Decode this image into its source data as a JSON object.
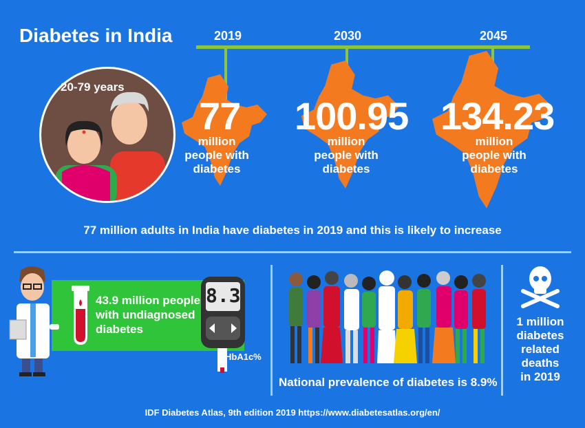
{
  "title": "Diabetes in India",
  "age_range": "20-79 years",
  "timeline": [
    {
      "year": "2019",
      "value": "77",
      "unit": "million",
      "desc1": "people with",
      "desc2": "diabetes"
    },
    {
      "year": "2030",
      "value": "100.95",
      "unit": "million",
      "desc1": "people with",
      "desc2": "diabetes"
    },
    {
      "year": "2045",
      "value": "134.23",
      "unit": "million",
      "desc1": "people with",
      "desc2": "diabetes"
    }
  ],
  "summary": "77 million adults in India have diabetes in 2019 and this is likely to increase",
  "undiagnosed": {
    "line1": "43.9 million people",
    "line2": "with undiagnosed",
    "line3": "diabetes"
  },
  "meter_reading": "8.3",
  "hba1c_label": "HbA1c%",
  "prevalence": "National prevalence of diabetes is 8.9%",
  "deaths": {
    "line1": "1 million",
    "line2": "diabetes",
    "line3": "related",
    "line4": "deaths",
    "line5": "in 2019"
  },
  "source": "IDF Diabetes Atlas, 9th edition 2019  https://www.diabetesatlas.org/en/",
  "colors": {
    "background": "#1a75e3",
    "accent_green": "#8cc63f",
    "map_orange": "#f47a20",
    "box_green": "#2fc43a"
  }
}
